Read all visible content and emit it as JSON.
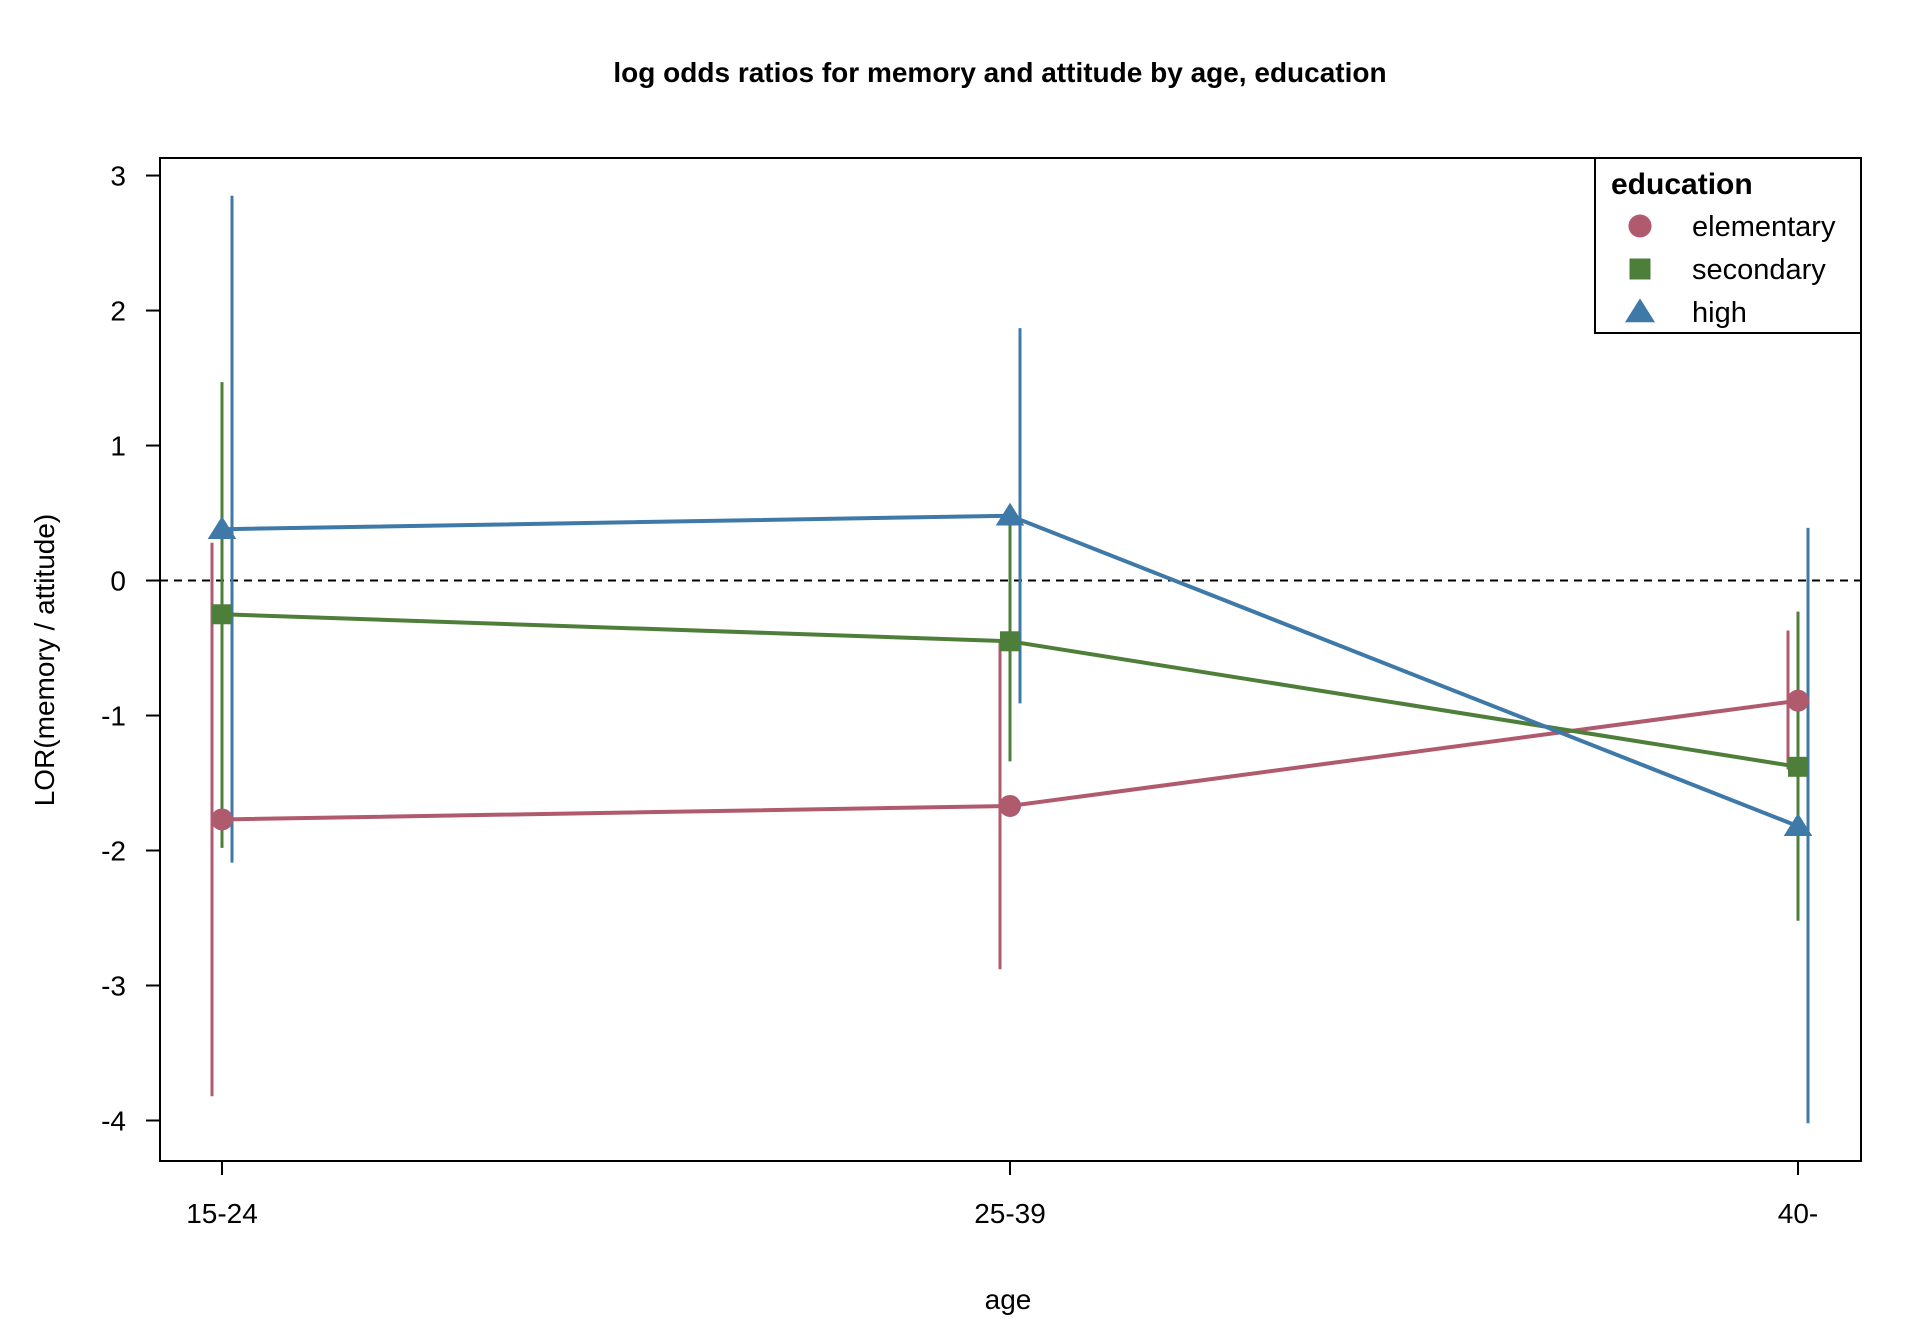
{
  "chart_data": {
    "type": "line",
    "title": "log odds ratios for memory and attitude by age, education",
    "xlabel": "age",
    "ylabel": "LOR(memory / attitude)",
    "categories": [
      "15-24",
      "25-39",
      "40-"
    ],
    "ylim": [
      -4.3,
      3.13
    ],
    "yticks": [
      3,
      2,
      1,
      0,
      -1,
      -2,
      -3,
      -4
    ],
    "reference_line": 0,
    "grid": false,
    "legend": {
      "title": "education",
      "position": "top-right"
    },
    "series": [
      {
        "name": "elementary",
        "color": "#B05A6E",
        "marker": "circle",
        "values": [
          -1.77,
          -1.67,
          -0.89
        ],
        "lower": [
          -3.82,
          -2.88,
          -1.4
        ],
        "upper": [
          0.28,
          -0.45,
          -0.37
        ]
      },
      {
        "name": "secondary",
        "color": "#4E7F3A",
        "marker": "square",
        "values": [
          -0.25,
          -0.45,
          -1.38
        ],
        "lower": [
          -1.98,
          -1.34,
          -2.52
        ],
        "upper": [
          1.47,
          0.44,
          -0.23
        ]
      },
      {
        "name": "high",
        "color": "#3F79A7",
        "marker": "triangle",
        "values": [
          0.38,
          0.48,
          -1.82
        ],
        "lower": [
          -2.09,
          -0.91,
          -4.02
        ],
        "upper": [
          2.85,
          1.87,
          0.39
        ]
      }
    ]
  }
}
